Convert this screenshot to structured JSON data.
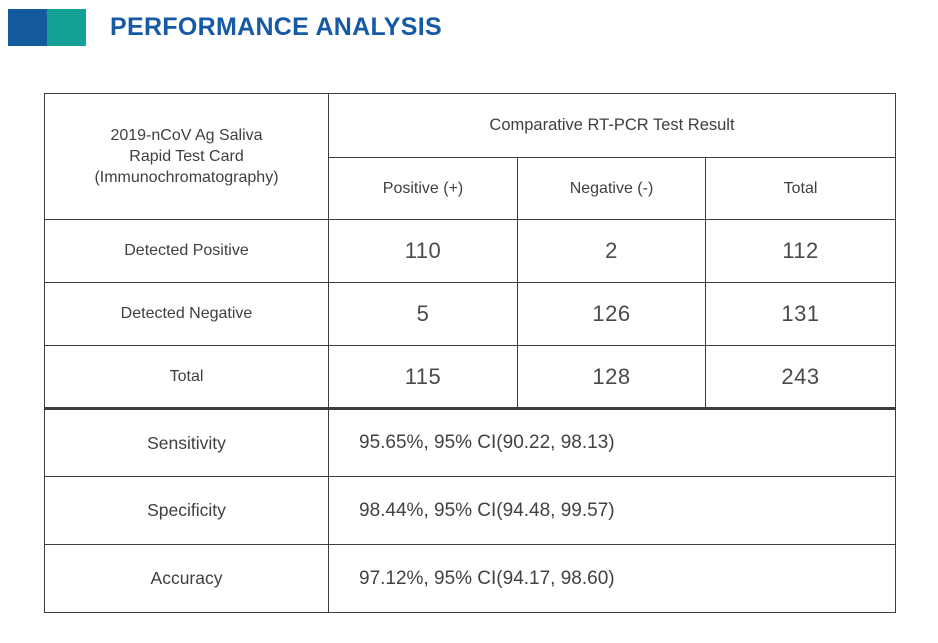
{
  "header": {
    "title": "PERFORMANCE ANALYSIS",
    "title_color": "#1659A5",
    "accent_blue": "#135A9E",
    "accent_teal": "#14A298"
  },
  "table": {
    "corner_label": "2019-nCoV Ag Saliva\nRapid Test Card\n(Immunochromatography)",
    "comparative_label": "Comparative RT-PCR Test Result",
    "columns": [
      "Positive (+)",
      "Negative (-)",
      "Total"
    ],
    "matrix_rows": [
      {
        "label": "Detected Positive",
        "values": [
          "110",
          "2",
          "112"
        ]
      },
      {
        "label": "Detected Negative",
        "values": [
          "5",
          "126",
          "131"
        ]
      },
      {
        "label": "Total",
        "values": [
          "115",
          "128",
          "243"
        ]
      }
    ],
    "stat_rows": [
      {
        "label": "Sensitivity",
        "value": "95.65%, 95% CI(90.22, 98.13)"
      },
      {
        "label": "Specificity",
        "value": "98.44%, 95% CI(94.48, 99.57)"
      },
      {
        "label": "Accuracy",
        "value": "97.12%, 95% CI(94.17, 98.60)"
      }
    ]
  }
}
